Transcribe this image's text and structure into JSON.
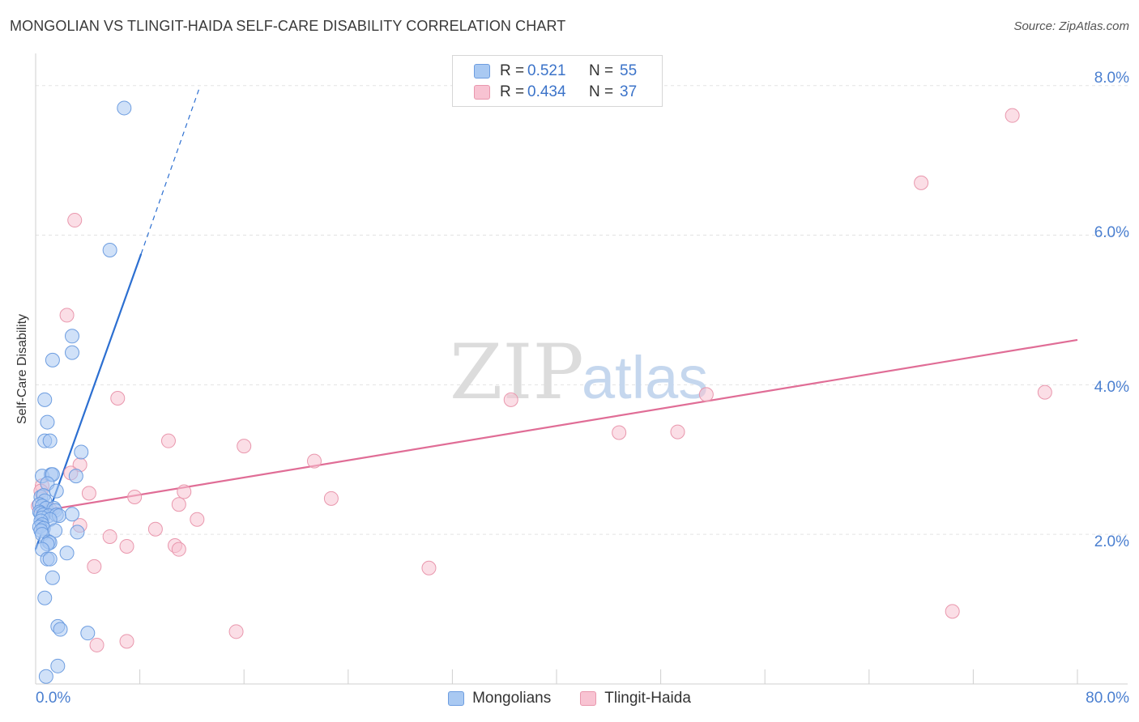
{
  "title": "MONGOLIAN VS TLINGIT-HAIDA SELF-CARE DISABILITY CORRELATION CHART",
  "source": "Source: ZipAtlas.com",
  "watermark": {
    "zip": "ZIP",
    "atlas": "atlas"
  },
  "colors": {
    "blue_fill": "#a9c9f2",
    "blue_stroke": "#6d9de0",
    "blue_line": "#2c6fd1",
    "pink_fill": "#f8c3d2",
    "pink_stroke": "#e997ad",
    "pink_line": "#e06d96",
    "tick_text": "#4a7fd0",
    "grid": "#e3e3e3"
  },
  "legend_top": {
    "rows": [
      {
        "series": "Mongolians",
        "r_label": "R =",
        "r_value": "0.521",
        "n_label": "N =",
        "n_value": "55"
      },
      {
        "series": "Tlingit-Haida",
        "r_label": "R =",
        "r_value": "0.434",
        "n_label": "N =",
        "n_value": "37"
      }
    ]
  },
  "legend_bottom": [
    "Mongolians",
    "Tlingit-Haida"
  ],
  "chart_data": {
    "type": "scatter",
    "title": "MONGOLIAN VS TLINGIT-HAIDA SELF-CARE DISABILITY CORRELATION CHART",
    "xlabel": "",
    "ylabel": "Self-Care Disability",
    "xlim": [
      0,
      80
    ],
    "ylim": [
      0,
      8.3
    ],
    "x_tick_labels": [
      "0.0%",
      "80.0%"
    ],
    "y_ticks": [
      2,
      4,
      6,
      8
    ],
    "y_tick_labels": [
      "2.0%",
      "4.0%",
      "6.0%",
      "8.0%"
    ],
    "grid": true,
    "series": [
      {
        "name": "Mongolians",
        "r": 0.521,
        "n": 55,
        "trend": {
          "x0": 0,
          "y0": 1.8,
          "x1": 8.1,
          "y1": 5.75,
          "dash_to_x": 12.6,
          "dash_to_y": 7.98
        },
        "points": [
          [
            6.8,
            7.7
          ],
          [
            5.7,
            5.8
          ],
          [
            2.8,
            4.65
          ],
          [
            2.8,
            4.43
          ],
          [
            1.3,
            4.33
          ],
          [
            0.7,
            3.8
          ],
          [
            0.9,
            3.5
          ],
          [
            0.7,
            3.25
          ],
          [
            1.1,
            3.25
          ],
          [
            3.5,
            3.1
          ],
          [
            0.5,
            2.78
          ],
          [
            1.2,
            2.8
          ],
          [
            1.3,
            2.8
          ],
          [
            3.1,
            2.78
          ],
          [
            0.9,
            2.68
          ],
          [
            1.6,
            2.58
          ],
          [
            0.4,
            2.5
          ],
          [
            0.6,
            2.52
          ],
          [
            0.7,
            2.45
          ],
          [
            0.3,
            2.4
          ],
          [
            0.5,
            2.38
          ],
          [
            0.8,
            2.35
          ],
          [
            1.4,
            2.35
          ],
          [
            1.5,
            2.32
          ],
          [
            0.3,
            2.3
          ],
          [
            0.4,
            2.28
          ],
          [
            0.6,
            2.26
          ],
          [
            1.0,
            2.25
          ],
          [
            1.6,
            2.26
          ],
          [
            1.8,
            2.25
          ],
          [
            2.8,
            2.27
          ],
          [
            0.5,
            2.22
          ],
          [
            1.1,
            2.2
          ],
          [
            0.4,
            2.18
          ],
          [
            0.5,
            2.13
          ],
          [
            0.3,
            2.1
          ],
          [
            0.6,
            2.08
          ],
          [
            0.4,
            2.05
          ],
          [
            1.5,
            2.05
          ],
          [
            3.2,
            2.03
          ],
          [
            0.5,
            2.0
          ],
          [
            1.0,
            1.9
          ],
          [
            1.1,
            1.89
          ],
          [
            0.9,
            1.87
          ],
          [
            0.5,
            1.8
          ],
          [
            2.4,
            1.75
          ],
          [
            0.9,
            1.67
          ],
          [
            1.1,
            1.67
          ],
          [
            1.3,
            1.42
          ],
          [
            0.7,
            1.15
          ],
          [
            1.7,
            0.77
          ],
          [
            1.9,
            0.73
          ],
          [
            4.0,
            0.68
          ],
          [
            1.7,
            0.24
          ],
          [
            0.8,
            0.1
          ]
        ]
      },
      {
        "name": "Tlingit-Haida",
        "r": 0.434,
        "n": 37,
        "trend": {
          "x0": 0,
          "y0": 2.3,
          "x1": 80,
          "y1": 4.6
        },
        "points": [
          [
            75.0,
            7.6
          ],
          [
            68.0,
            6.7
          ],
          [
            3.0,
            6.2
          ],
          [
            2.4,
            4.93
          ],
          [
            6.3,
            3.82
          ],
          [
            36.5,
            3.8
          ],
          [
            51.5,
            3.87
          ],
          [
            77.5,
            3.9
          ],
          [
            44.8,
            3.36
          ],
          [
            49.3,
            3.37
          ],
          [
            10.2,
            3.25
          ],
          [
            16.0,
            3.18
          ],
          [
            21.4,
            2.98
          ],
          [
            3.4,
            2.93
          ],
          [
            2.7,
            2.82
          ],
          [
            0.5,
            2.65
          ],
          [
            4.1,
            2.55
          ],
          [
            7.6,
            2.5
          ],
          [
            11.4,
            2.57
          ],
          [
            22.7,
            2.48
          ],
          [
            11.0,
            2.4
          ],
          [
            0.2,
            2.38
          ],
          [
            1.1,
            2.33
          ],
          [
            12.4,
            2.2
          ],
          [
            3.4,
            2.12
          ],
          [
            9.2,
            2.07
          ],
          [
            5.7,
            1.97
          ],
          [
            10.7,
            1.85
          ],
          [
            7.0,
            1.84
          ],
          [
            11.0,
            1.8
          ],
          [
            4.5,
            1.57
          ],
          [
            30.2,
            1.55
          ],
          [
            70.4,
            0.97
          ],
          [
            15.4,
            0.7
          ],
          [
            4.7,
            0.52
          ],
          [
            7.0,
            0.57
          ],
          [
            0.4,
            2.58
          ]
        ]
      }
    ]
  }
}
